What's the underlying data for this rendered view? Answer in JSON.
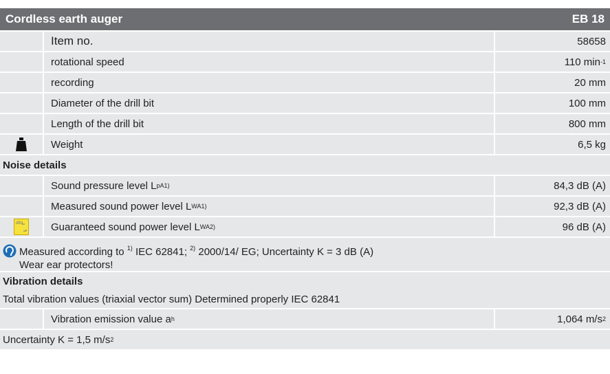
{
  "header": {
    "title": "Cordless earth auger",
    "model": "EB 18"
  },
  "specs": [
    {
      "label": [
        {
          "text": "Item no."
        }
      ],
      "value": [
        {
          "text": "58658"
        }
      ]
    },
    {
      "label": [
        {
          "text": "rotational speed"
        }
      ],
      "value": [
        {
          "text": "110 min"
        },
        {
          "sup": "-1"
        }
      ]
    },
    {
      "label": [
        {
          "text": "recording"
        }
      ],
      "value": [
        {
          "text": "20 mm"
        }
      ]
    },
    {
      "label": [
        {
          "text": "Diameter of the drill bit"
        }
      ],
      "value": [
        {
          "text": "100 mm"
        }
      ]
    },
    {
      "label": [
        {
          "text": "Length of the drill bit"
        }
      ],
      "value": [
        {
          "text": "800 mm"
        }
      ]
    },
    {
      "label": [
        {
          "text": "Weight"
        }
      ],
      "value": [
        {
          "text": "6,5 kg"
        }
      ]
    }
  ],
  "noise": {
    "title": "Noise details",
    "rows": [
      {
        "label": [
          {
            "text": "Sound pressure level L"
          },
          {
            "sub": "pA"
          },
          {
            "sup": "1)"
          }
        ],
        "value": [
          {
            "text": "84,3 dB (A)"
          }
        ]
      },
      {
        "label": [
          {
            "text": "Measured sound power level L"
          },
          {
            "sub": "WA"
          },
          {
            "sup": "1)"
          }
        ],
        "value": [
          {
            "text": "92,3 dB (A)"
          }
        ]
      },
      {
        "label": [
          {
            "text": "Guaranteed sound power level L"
          },
          {
            "sub": "WA"
          },
          {
            "sup": "2)"
          }
        ],
        "value": [
          {
            "text": "96 dB (A)"
          }
        ]
      }
    ],
    "note": [
      [
        {
          "text": "Measured according to "
        },
        {
          "sup": "1)"
        },
        {
          "text": " IEC 62841; "
        },
        {
          "sup": "2)"
        },
        {
          "text": " 2000/14/ EG; Uncertainty K =  3 dB (A)"
        }
      ],
      [
        {
          "text": "Wear ear protectors!"
        }
      ]
    ]
  },
  "vibration": {
    "title": "Vibration details",
    "subtitle": "Total vibration values (triaxial vector sum) Determined properly IEC 62841",
    "rows": [
      {
        "label": [
          {
            "text": "Vibration emission value a"
          },
          {
            "sub": "h"
          }
        ],
        "value": [
          {
            "text": "1,064  m/s"
          },
          {
            "sup": "2"
          }
        ]
      }
    ],
    "note": [
      {
        "text": "Uncertainty K = 1,5 m/s"
      },
      {
        "sup": "2"
      }
    ]
  }
}
